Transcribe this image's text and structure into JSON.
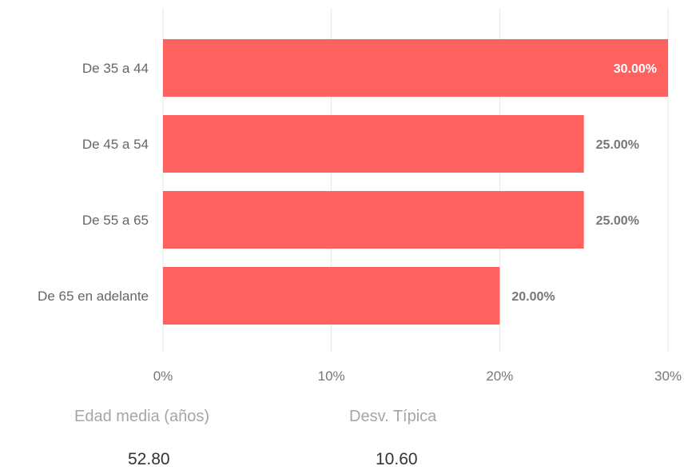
{
  "chart_data": {
    "type": "bar",
    "orientation": "horizontal",
    "categories": [
      "De 35 a 44",
      "De 45 a 54",
      "De 55 a 65",
      "De 65 en adelante"
    ],
    "values": [
      30,
      25,
      25,
      20
    ],
    "data_labels": [
      "30.00%",
      "25.00%",
      "25.00%",
      "20.00%"
    ],
    "xlim": [
      0,
      30
    ],
    "xticks": [
      0,
      10,
      20,
      30
    ],
    "xtick_labels": [
      "0%",
      "10%",
      "20%",
      "30%"
    ],
    "grid": true,
    "bar_color": "#fd625e"
  },
  "stats": {
    "mean_label": "Edad media (años)",
    "mean_value": "52.80",
    "std_label": "Desv. Típica",
    "std_value": "10.60"
  }
}
